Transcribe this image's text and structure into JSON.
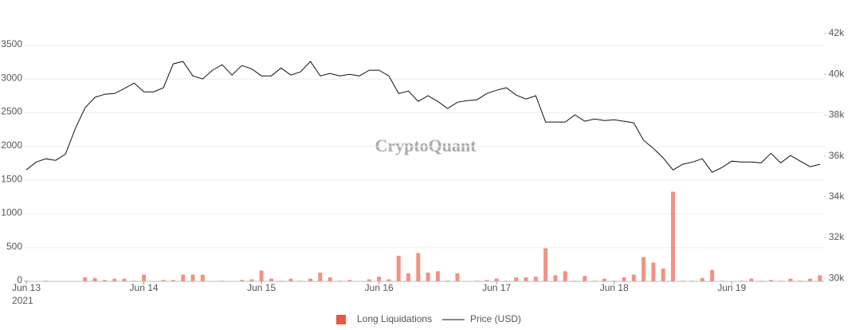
{
  "chart_data": {
    "type": "combo",
    "watermark": "CryptoQuant",
    "year_label": "2021",
    "x": [
      "2021-06-13 00:00",
      "2021-06-13 02:00",
      "2021-06-13 04:00",
      "2021-06-13 06:00",
      "2021-06-13 08:00",
      "2021-06-13 10:00",
      "2021-06-13 12:00",
      "2021-06-13 14:00",
      "2021-06-13 16:00",
      "2021-06-13 18:00",
      "2021-06-13 20:00",
      "2021-06-13 22:00",
      "2021-06-14 00:00",
      "2021-06-14 02:00",
      "2021-06-14 04:00",
      "2021-06-14 06:00",
      "2021-06-14 08:00",
      "2021-06-14 10:00",
      "2021-06-14 12:00",
      "2021-06-14 14:00",
      "2021-06-14 16:00",
      "2021-06-14 18:00",
      "2021-06-14 20:00",
      "2021-06-14 22:00",
      "2021-06-15 00:00",
      "2021-06-15 02:00",
      "2021-06-15 04:00",
      "2021-06-15 06:00",
      "2021-06-15 08:00",
      "2021-06-15 10:00",
      "2021-06-15 12:00",
      "2021-06-15 14:00",
      "2021-06-15 16:00",
      "2021-06-15 18:00",
      "2021-06-15 20:00",
      "2021-06-15 22:00",
      "2021-06-16 00:00",
      "2021-06-16 02:00",
      "2021-06-16 04:00",
      "2021-06-16 06:00",
      "2021-06-16 08:00",
      "2021-06-16 10:00",
      "2021-06-16 12:00",
      "2021-06-16 14:00",
      "2021-06-16 16:00",
      "2021-06-16 18:00",
      "2021-06-16 20:00",
      "2021-06-16 22:00",
      "2021-06-17 00:00",
      "2021-06-17 02:00",
      "2021-06-17 04:00",
      "2021-06-17 06:00",
      "2021-06-17 08:00",
      "2021-06-17 10:00",
      "2021-06-17 12:00",
      "2021-06-17 14:00",
      "2021-06-17 16:00",
      "2021-06-17 18:00",
      "2021-06-17 20:00",
      "2021-06-17 22:00",
      "2021-06-18 00:00",
      "2021-06-18 02:00",
      "2021-06-18 04:00",
      "2021-06-18 06:00",
      "2021-06-18 08:00",
      "2021-06-18 10:00",
      "2021-06-18 12:00",
      "2021-06-18 14:00",
      "2021-06-18 16:00",
      "2021-06-18 18:00",
      "2021-06-18 20:00",
      "2021-06-18 22:00",
      "2021-06-19 00:00",
      "2021-06-19 02:00",
      "2021-06-19 04:00",
      "2021-06-19 06:00",
      "2021-06-19 08:00",
      "2021-06-19 10:00",
      "2021-06-19 12:00",
      "2021-06-19 14:00",
      "2021-06-19 16:00",
      "2021-06-19 18:00"
    ],
    "xlim": [
      "2021-06-13 00:00",
      "2021-06-19 18:00"
    ],
    "xticks": [
      {
        "value": "2021-06-13 00:00",
        "label": "Jun 13"
      },
      {
        "value": "2021-06-14 00:00",
        "label": "Jun 14"
      },
      {
        "value": "2021-06-15 00:00",
        "label": "Jun 15"
      },
      {
        "value": "2021-06-16 00:00",
        "label": "Jun 16"
      },
      {
        "value": "2021-06-17 00:00",
        "label": "Jun 17"
      },
      {
        "value": "2021-06-18 00:00",
        "label": "Jun 18"
      },
      {
        "value": "2021-06-19 00:00",
        "label": "Jun 19"
      }
    ],
    "ylim": [
      0,
      3677
    ],
    "yticks": [
      0,
      500,
      1000,
      1500,
      2000,
      2500,
      3000,
      3500
    ],
    "y2lim": [
      29850,
      42000
    ],
    "y2ticks": [
      {
        "value": 30000,
        "label": "30k"
      },
      {
        "value": 32000,
        "label": "32k"
      },
      {
        "value": 34000,
        "label": "34k"
      },
      {
        "value": 36000,
        "label": "36k"
      },
      {
        "value": 38000,
        "label": "38k"
      },
      {
        "value": 40000,
        "label": "40k"
      },
      {
        "value": 42000,
        "label": "42k"
      }
    ],
    "grid": true,
    "series": [
      {
        "name": "Long Liquidations",
        "type": "bar",
        "axis": "y",
        "color": "#e9573f",
        "values": [
          10,
          5,
          10,
          5,
          0,
          5,
          60,
          50,
          20,
          40,
          40,
          10,
          100,
          5,
          20,
          20,
          100,
          100,
          100,
          5,
          10,
          5,
          20,
          30,
          160,
          40,
          10,
          40,
          10,
          40,
          130,
          60,
          10,
          20,
          5,
          30,
          70,
          30,
          380,
          120,
          420,
          130,
          150,
          10,
          120,
          5,
          10,
          20,
          40,
          10,
          60,
          60,
          70,
          490,
          90,
          150,
          10,
          80,
          10,
          40,
          10,
          60,
          100,
          360,
          280,
          190,
          1330,
          10,
          10,
          50,
          170,
          10,
          5,
          10,
          40,
          10,
          20,
          10,
          40,
          10,
          40,
          90
        ]
      },
      {
        "name": "Price (USD)",
        "type": "line",
        "axis": "y2",
        "color": "#111111",
        "values": [
          35310,
          35700,
          35860,
          35780,
          36090,
          37340,
          38360,
          38870,
          39020,
          39060,
          39300,
          39570,
          39140,
          39140,
          39340,
          40510,
          40630,
          39920,
          39770,
          40200,
          40470,
          39960,
          40430,
          40270,
          39920,
          39920,
          40310,
          39960,
          40120,
          40630,
          39920,
          40040,
          39920,
          40000,
          39920,
          40200,
          40200,
          39920,
          39060,
          39180,
          38670,
          38950,
          38670,
          38320,
          38630,
          38710,
          38750,
          39060,
          39220,
          39340,
          38980,
          38790,
          38950,
          37660,
          37660,
          37660,
          38010,
          37700,
          37810,
          37730,
          37770,
          37700,
          37620,
          36760,
          36370,
          35900,
          35310,
          35590,
          35700,
          35860,
          35200,
          35430,
          35740,
          35700,
          35700,
          35660,
          36130,
          35660,
          36020,
          35740,
          35470,
          35590
        ]
      }
    ]
  }
}
